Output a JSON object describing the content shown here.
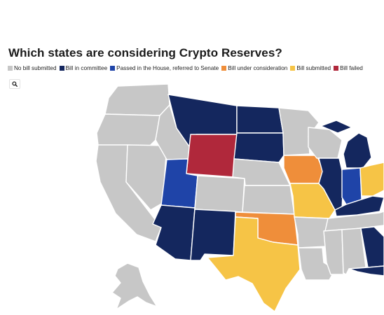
{
  "title": "Which states are considering Crypto Reserves?",
  "legend": [
    {
      "label": "No bill submitted",
      "color": "#c7c7c7"
    },
    {
      "label": "Bill in committee",
      "color": "#14275e"
    },
    {
      "label": "Passed in the House, referred to Senate",
      "color": "#1f44a8"
    },
    {
      "label": "Bill under consideration",
      "color": "#ef8e3a"
    },
    {
      "label": "Bill submitted",
      "color": "#f6c446"
    },
    {
      "label": "Bill failed",
      "color": "#b0283b"
    }
  ],
  "zoom_button": {
    "icon": "magnifier-icon"
  },
  "states": {
    "Washington": "No bill submitted",
    "Oregon": "No bill submitted",
    "California": "No bill submitted",
    "Nevada": "No bill submitted",
    "Idaho": "No bill submitted",
    "Montana": "Bill in committee",
    "Wyoming": "Bill failed",
    "Utah": "Passed in the House, referred to Senate",
    "Arizona": "Bill in committee",
    "Colorado": "No bill submitted",
    "New Mexico": "Bill in committee",
    "North Dakota": "Bill in committee",
    "South Dakota": "Bill in committee",
    "Nebraska": "No bill submitted",
    "Kansas": "No bill submitted",
    "Oklahoma": "Bill under consideration",
    "Texas": "Bill submitted",
    "Minnesota": "No bill submitted",
    "Iowa": "Bill under consideration",
    "Missouri": "Bill submitted",
    "Arkansas": "No bill submitted",
    "Louisiana": "No bill submitted",
    "Wisconsin": "No bill submitted",
    "Illinois": "Bill in committee",
    "Michigan": "Bill in committee",
    "Indiana": "Passed in the House, referred to Senate",
    "Ohio": "Bill submitted",
    "Kentucky": "Bill in committee",
    "Tennessee": "No bill submitted",
    "Mississippi": "No bill submitted",
    "Alabama": "No bill submitted",
    "Georgia": "Bill in committee",
    "Florida": "Bill in committee",
    "Alaska": "No bill submitted"
  }
}
